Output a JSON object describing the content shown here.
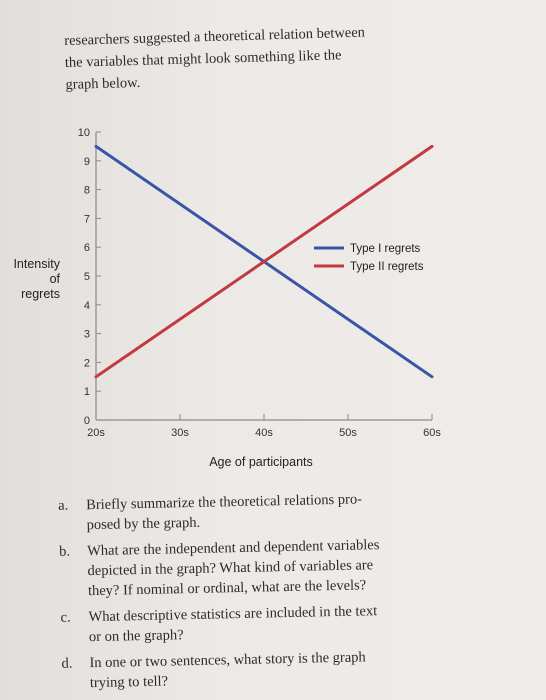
{
  "intro": {
    "lines": [
      "researchers suggested a theoretical relation between",
      "the variables that might look something like the",
      "graph below."
    ]
  },
  "chart_data": {
    "type": "line",
    "x": [
      "20s",
      "30s",
      "40s",
      "50s",
      "60s"
    ],
    "x_numeric": [
      20,
      30,
      40,
      50,
      60
    ],
    "xlabel": "Age of participants",
    "ylabel": "Intensity of regrets",
    "ylim": [
      0,
      10
    ],
    "yticks": [
      0,
      1,
      2,
      3,
      4,
      5,
      6,
      7,
      8,
      9,
      10
    ],
    "grid": false,
    "legend": "right",
    "series": [
      {
        "name": "Type I regrets",
        "color": "#3a55a8",
        "x": [
          20,
          60
        ],
        "values": [
          9.5,
          1.5
        ]
      },
      {
        "name": "Type II regrets",
        "color": "#c2393e",
        "x": [
          20,
          60
        ],
        "values": [
          1.5,
          9.5
        ]
      }
    ]
  },
  "questions": [
    {
      "label": "a.",
      "lines": [
        "Briefly summarize the theoretical relations pro-",
        "posed by the graph."
      ]
    },
    {
      "label": "b.",
      "lines": [
        "What are the independent and dependent variables",
        "depicted in the graph? What kind of variables are",
        "they? If nominal or ordinal, what are the levels?"
      ]
    },
    {
      "label": "c.",
      "lines": [
        "What descriptive statistics are included in the text",
        "or on the graph?"
      ]
    },
    {
      "label": "d.",
      "lines": [
        "In one or two sentences, what story is the graph",
        "trying to tell?"
      ]
    }
  ]
}
